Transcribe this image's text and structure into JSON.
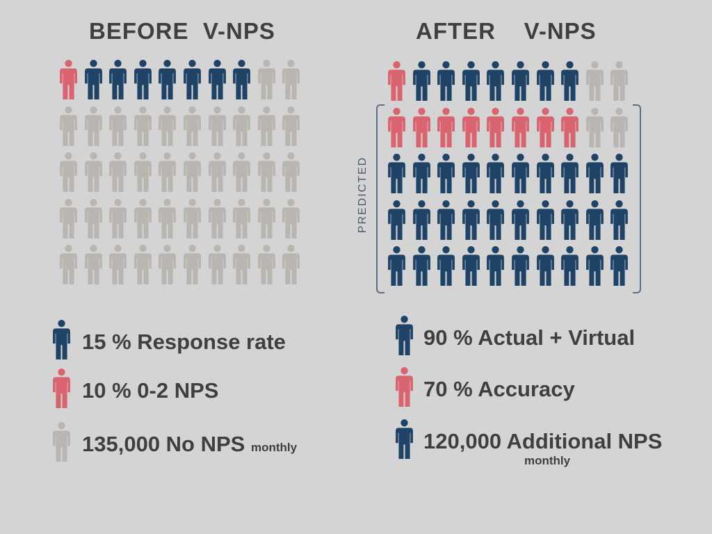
{
  "colors": {
    "red": "#d9646f",
    "blue": "#1f4366",
    "gray": "#b9b5b1",
    "background": "#d4d4d4"
  },
  "icon": "person-icon",
  "before": {
    "title": "BEFORE  V-NPS",
    "grid": [
      [
        "red",
        "blue",
        "blue",
        "blue",
        "blue",
        "blue",
        "blue",
        "blue",
        "gray",
        "gray"
      ],
      [
        "gray",
        "gray",
        "gray",
        "gray",
        "gray",
        "gray",
        "gray",
        "gray",
        "gray",
        "gray"
      ],
      [
        "gray",
        "gray",
        "gray",
        "gray",
        "gray",
        "gray",
        "gray",
        "gray",
        "gray",
        "gray"
      ],
      [
        "gray",
        "gray",
        "gray",
        "gray",
        "gray",
        "gray",
        "gray",
        "gray",
        "gray",
        "gray"
      ],
      [
        "gray",
        "gray",
        "gray",
        "gray",
        "gray",
        "gray",
        "gray",
        "gray",
        "gray",
        "gray"
      ]
    ],
    "legend": [
      {
        "color": "blue",
        "text": "15 % Response rate",
        "suffix": ""
      },
      {
        "color": "red",
        "text": "10 %  0-2 NPS",
        "suffix": ""
      },
      {
        "color": "gray",
        "text": "135,000 No NPS",
        "suffix": "monthly"
      }
    ]
  },
  "after": {
    "title": "AFTER    V-NPS",
    "predicted_label": "PREDICTED",
    "grid": [
      [
        "red",
        "blue",
        "blue",
        "blue",
        "blue",
        "blue",
        "blue",
        "blue",
        "gray",
        "gray"
      ],
      [
        "red",
        "red",
        "red",
        "red",
        "red",
        "red",
        "red",
        "red",
        "gray",
        "gray"
      ],
      [
        "blue",
        "blue",
        "blue",
        "blue",
        "blue",
        "blue",
        "blue",
        "blue",
        "blue",
        "blue"
      ],
      [
        "blue",
        "blue",
        "blue",
        "blue",
        "blue",
        "blue",
        "blue",
        "blue",
        "blue",
        "blue"
      ],
      [
        "blue",
        "blue",
        "blue",
        "blue",
        "blue",
        "blue",
        "blue",
        "blue",
        "blue",
        "blue"
      ]
    ],
    "legend": [
      {
        "color": "blue",
        "text": "90 % Actual + Virtual",
        "note": ""
      },
      {
        "color": "red",
        "text": "70 %  Accuracy",
        "note": ""
      },
      {
        "color": "blue",
        "text": "120,000 Additional NPS",
        "note": "monthly"
      }
    ]
  }
}
